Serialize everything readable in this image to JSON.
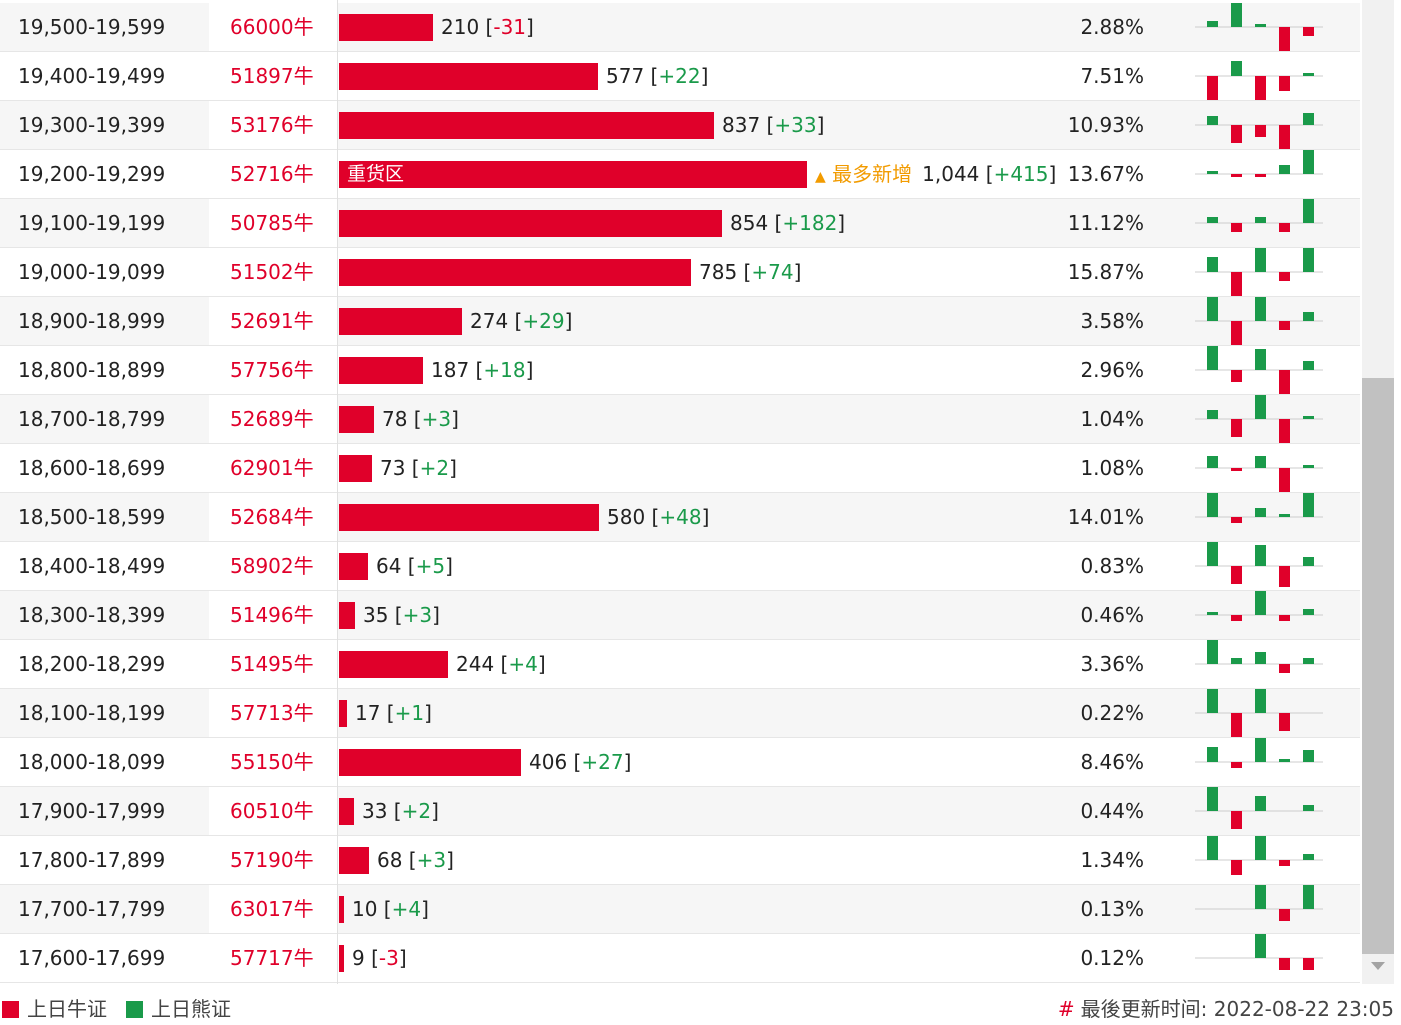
{
  "colors": {
    "bull": "#e0002a",
    "bear": "#1a9a4a",
    "highlight": "#f29b00"
  },
  "rows": [
    {
      "range": "19,500-19,599",
      "code": "66000牛",
      "count": "210",
      "change": "-31",
      "pct": "2.88%",
      "bar": 210,
      "spark": [
        2,
        8,
        1,
        -8,
        -3
      ]
    },
    {
      "range": "19,400-19,499",
      "code": "51897牛",
      "count": "577",
      "change": "+22",
      "pct": "7.51%",
      "bar": 577,
      "spark": [
        -8,
        5,
        -8,
        -5,
        1
      ]
    },
    {
      "range": "19,300-19,399",
      "code": "53176牛",
      "count": "837",
      "change": "+33",
      "pct": "10.93%",
      "bar": 837,
      "spark": [
        3,
        -6,
        -4,
        -8,
        4
      ]
    },
    {
      "range": "19,200-19,299",
      "code": "52716牛",
      "count": "1,044",
      "change": "+415",
      "pct": "13.67%",
      "bar": 1044,
      "label": "重货区",
      "badge": "最多新增",
      "spark": [
        1,
        -1,
        -1,
        3,
        8
      ]
    },
    {
      "range": "19,100-19,199",
      "code": "50785牛",
      "count": "854",
      "change": "+182",
      "pct": "11.12%",
      "bar": 854,
      "spark": [
        2,
        -3,
        2,
        -3,
        8
      ]
    },
    {
      "range": "19,000-19,099",
      "code": "51502牛",
      "count": "785",
      "change": "+74",
      "pct": "15.87%",
      "bar": 785,
      "spark": [
        5,
        -8,
        8,
        -3,
        8
      ]
    },
    {
      "range": "18,900-18,999",
      "code": "52691牛",
      "count": "274",
      "change": "+29",
      "pct": "3.58%",
      "bar": 274,
      "spark": [
        8,
        -8,
        8,
        -3,
        3
      ]
    },
    {
      "range": "18,800-18,899",
      "code": "57756牛",
      "count": "187",
      "change": "+18",
      "pct": "2.96%",
      "bar": 187,
      "spark": [
        8,
        -4,
        7,
        -8,
        3
      ]
    },
    {
      "range": "18,700-18,799",
      "code": "52689牛",
      "count": "78",
      "change": "+3",
      "pct": "1.04%",
      "bar": 78,
      "spark": [
        3,
        -6,
        8,
        -8,
        1
      ]
    },
    {
      "range": "18,600-18,699",
      "code": "62901牛",
      "count": "73",
      "change": "+2",
      "pct": "1.08%",
      "bar": 73,
      "spark": [
        4,
        -1,
        4,
        -8,
        1
      ]
    },
    {
      "range": "18,500-18,599",
      "code": "52684牛",
      "count": "580",
      "change": "+48",
      "pct": "14.01%",
      "bar": 580,
      "spark": [
        8,
        -2,
        3,
        1,
        8
      ]
    },
    {
      "range": "18,400-18,499",
      "code": "58902牛",
      "count": "64",
      "change": "+5",
      "pct": "0.83%",
      "bar": 64,
      "spark": [
        8,
        -6,
        7,
        -7,
        3
      ]
    },
    {
      "range": "18,300-18,399",
      "code": "51496牛",
      "count": "35",
      "change": "+3",
      "pct": "0.46%",
      "bar": 35,
      "spark": [
        1,
        -2,
        8,
        -2,
        2
      ]
    },
    {
      "range": "18,200-18,299",
      "code": "51495牛",
      "count": "244",
      "change": "+4",
      "pct": "3.36%",
      "bar": 244,
      "spark": [
        8,
        2,
        4,
        -3,
        2
      ]
    },
    {
      "range": "18,100-18,199",
      "code": "57713牛",
      "count": "17",
      "change": "+1",
      "pct": "0.22%",
      "bar": 17,
      "spark": [
        8,
        -8,
        8,
        -6,
        0
      ]
    },
    {
      "range": "18,000-18,099",
      "code": "55150牛",
      "count": "406",
      "change": "+27",
      "pct": "8.46%",
      "bar": 406,
      "spark": [
        5,
        -2,
        8,
        1,
        4
      ]
    },
    {
      "range": "17,900-17,999",
      "code": "60510牛",
      "count": "33",
      "change": "+2",
      "pct": "0.44%",
      "bar": 33,
      "spark": [
        8,
        -6,
        5,
        0,
        2
      ]
    },
    {
      "range": "17,800-17,899",
      "code": "57190牛",
      "count": "68",
      "change": "+3",
      "pct": "1.34%",
      "bar": 68,
      "spark": [
        8,
        -5,
        8,
        -2,
        2
      ]
    },
    {
      "range": "17,700-17,799",
      "code": "63017牛",
      "count": "10",
      "change": "+4",
      "pct": "0.13%",
      "bar": 10,
      "spark": [
        0,
        0,
        8,
        -4,
        8
      ]
    },
    {
      "range": "17,600-17,699",
      "code": "57717牛",
      "count": "9",
      "change": "-3",
      "pct": "0.12%",
      "bar": 9,
      "spark": [
        0,
        0,
        8,
        -4,
        -4
      ]
    }
  ],
  "footer": {
    "legend_bull": "上日牛证",
    "legend_bear": "上日熊证",
    "hash": "#",
    "updated_label": "最後更新时间: 2022-08-22 23:05"
  }
}
